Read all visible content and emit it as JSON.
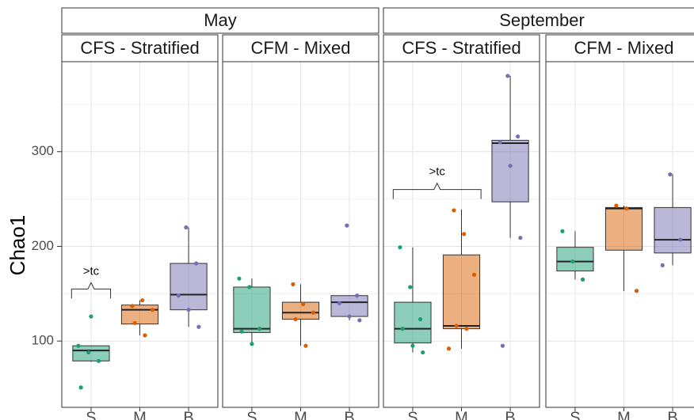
{
  "chart_data": {
    "type": "box",
    "y_label": "Chao1",
    "ylim": [
      30,
      395
    ],
    "yticks": [
      100,
      200,
      300
    ],
    "minor_yticks": [
      150,
      250,
      350
    ],
    "grid": true,
    "categories": [
      "S",
      "M",
      "B"
    ],
    "colors": [
      "#1b9e77",
      "#d95f02",
      "#7570b3"
    ],
    "facets": [
      {
        "title": "May",
        "panels": [
          {
            "title": "CFS - Stratified",
            "boxes": [
              {
                "min": 78,
                "q1": 79,
                "median": 90,
                "q3": 95,
                "max": 95,
                "points": [
                  95,
                  88,
                  79,
                  51,
                  126
                ]
              },
              {
                "min": 106,
                "q1": 118,
                "median": 133,
                "q3": 138,
                "max": 143,
                "points": [
                  137,
                  143,
                  133,
                  119,
                  106
                ]
              },
              {
                "min": 115,
                "q1": 133,
                "median": 149,
                "q3": 182,
                "max": 220,
                "points": [
                  220,
                  182,
                  148,
                  133,
                  115
                ]
              }
            ]
          },
          {
            "title": "CFM - Mixed",
            "boxes": [
              {
                "min": 97,
                "q1": 109,
                "median": 113,
                "q3": 157,
                "max": 166,
                "points": [
                  166,
                  157,
                  113,
                  110,
                  97
                ]
              },
              {
                "min": 95,
                "q1": 123,
                "median": 130,
                "q3": 141,
                "max": 160,
                "points": [
                  160,
                  139,
                  130,
                  123,
                  95
                ]
              },
              {
                "min": 122,
                "q1": 126,
                "median": 141,
                "q3": 148,
                "max": 148,
                "points": [
                  222,
                  148,
                  140,
                  126,
                  122
                ]
              }
            ]
          }
        ]
      },
      {
        "title": "September",
        "panels": [
          {
            "title": "CFS - Stratified",
            "boxes": [
              {
                "min": 88,
                "q1": 98,
                "median": 113,
                "q3": 141,
                "max": 199,
                "points": [
                  199,
                  157,
                  123,
                  113,
                  95,
                  88
                ]
              },
              {
                "min": 92,
                "q1": 113,
                "median": 116,
                "q3": 191,
                "max": 239,
                "points": [
                  238,
                  213,
                  170,
                  116,
                  113,
                  92
                ]
              },
              {
                "min": 209,
                "q1": 247,
                "median": 309,
                "q3": 312,
                "max": 380,
                "points": [
                  380,
                  316,
                  310,
                  285,
                  209,
                  95
                ]
              }
            ]
          },
          {
            "title": "CFM - Mixed",
            "boxes": [
              {
                "min": 165,
                "q1": 174,
                "median": 184,
                "q3": 199,
                "max": 216,
                "points": [
                  216,
                  184,
                  165
                ]
              },
              {
                "min": 153,
                "q1": 196,
                "median": 240,
                "q3": 241,
                "max": 243,
                "points": [
                  243,
                  240,
                  153
                ]
              },
              {
                "min": 180,
                "q1": 193,
                "median": 207,
                "q3": 241,
                "max": 276,
                "points": [
                  276,
                  207,
                  180
                ]
              }
            ]
          }
        ]
      }
    ],
    "annotations": [
      {
        "text": ">tc",
        "facet": 0,
        "panel": 0,
        "from": 0,
        "to": 0,
        "y": 155
      },
      {
        "text": ">tc",
        "facet": 1,
        "panel": 0,
        "from": 0,
        "to": 1,
        "y": 260
      }
    ]
  }
}
